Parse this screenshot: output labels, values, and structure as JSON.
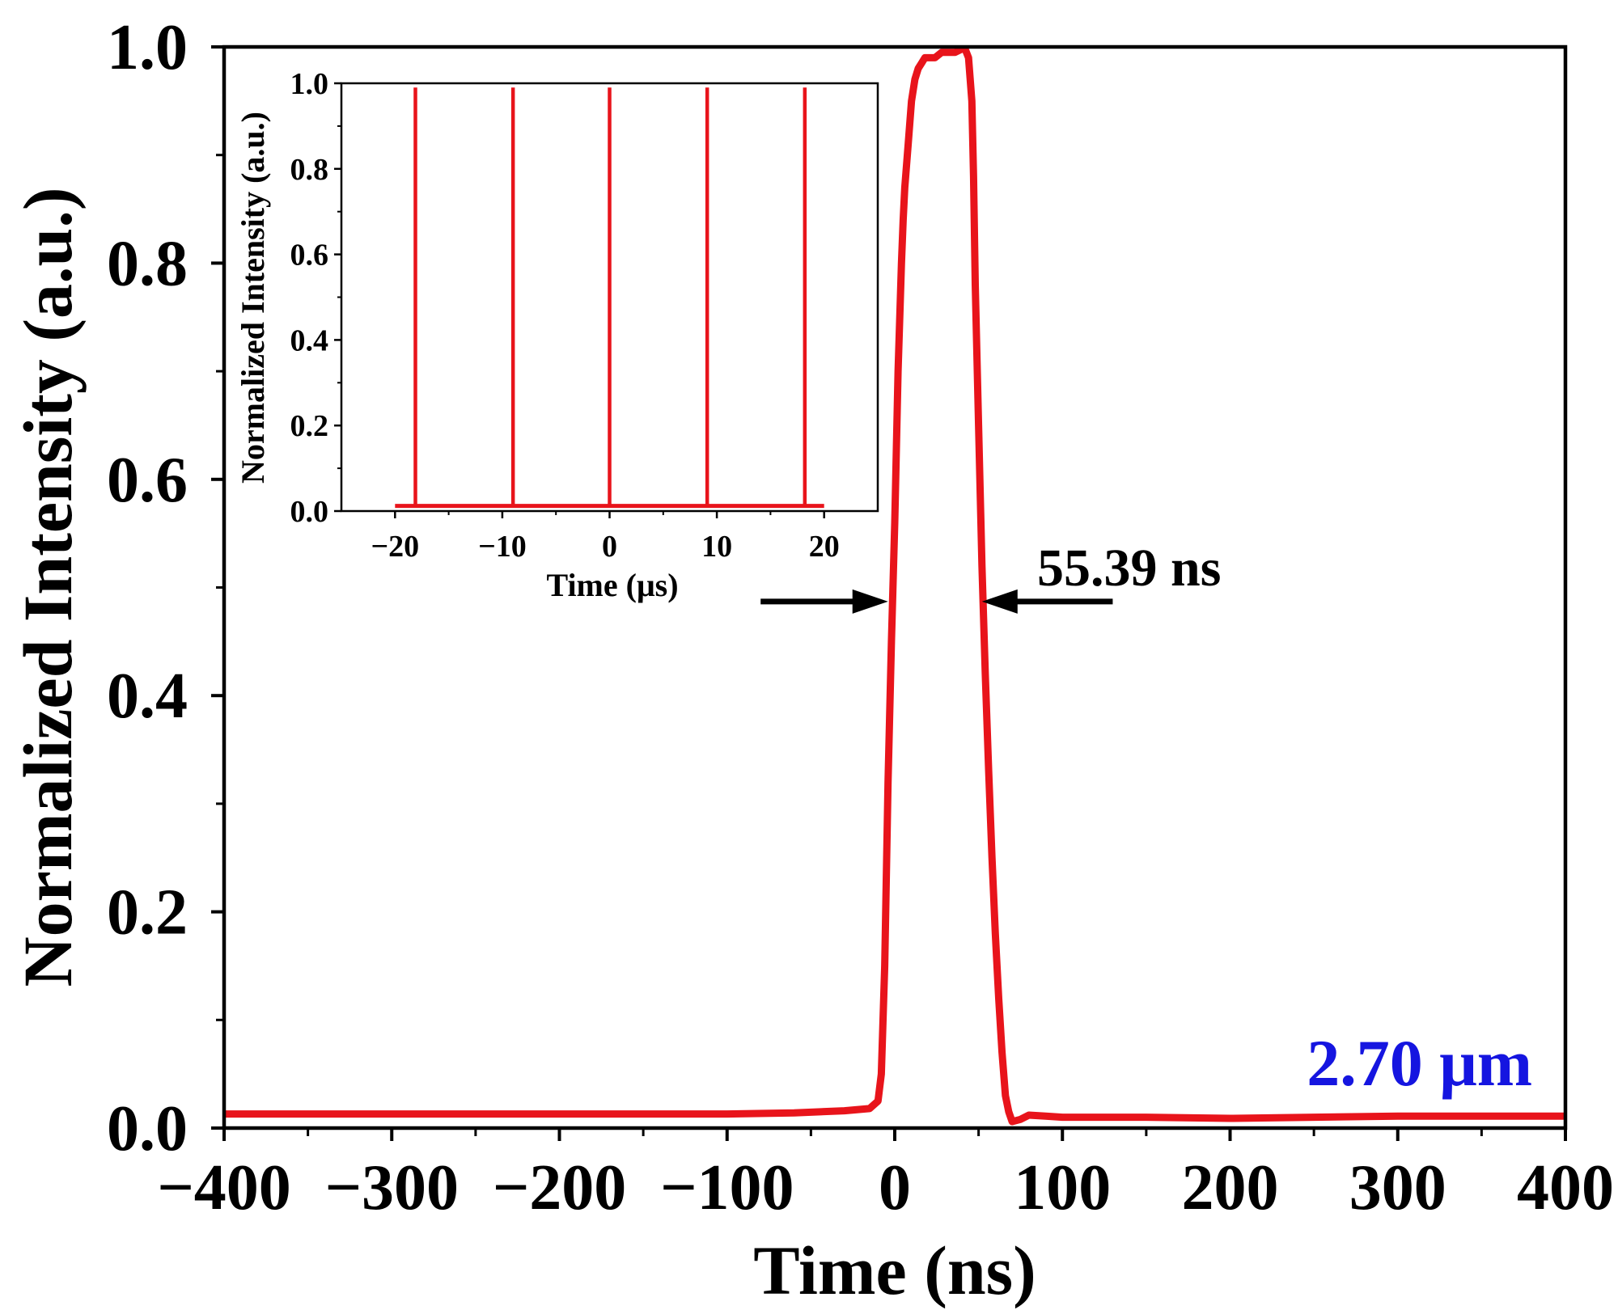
{
  "chart_data": [
    {
      "id": "main",
      "type": "line",
      "title": "",
      "xlabel": "Time (ns)",
      "ylabel": "Normalized Intensity (a.u.)",
      "xlim": [
        -400,
        400
      ],
      "ylim": [
        0,
        1.0
      ],
      "xticks": [
        -400,
        -300,
        -200,
        -100,
        0,
        100,
        200,
        300,
        400
      ],
      "xtick_labels": [
        "−400",
        "−300",
        "−200",
        "−100",
        "0",
        "100",
        "200",
        "300",
        "400"
      ],
      "yticks": [
        0.0,
        0.2,
        0.4,
        0.6,
        0.8,
        1.0
      ],
      "ytick_labels": [
        "0.0",
        "0.2",
        "0.4",
        "0.6",
        "0.8",
        "1.0"
      ],
      "grid": false,
      "series": [
        {
          "name": "pulse",
          "color": "#e8141b",
          "x": [
            -400,
            -350,
            -300,
            -250,
            -200,
            -150,
            -100,
            -60,
            -30,
            -15,
            -10,
            -8,
            -6,
            -4,
            -2,
            0,
            2,
            4,
            5,
            6,
            8,
            10,
            12,
            14,
            16,
            18,
            20,
            24,
            28,
            32,
            36,
            40,
            42,
            44,
            46,
            47,
            48,
            50,
            52,
            54,
            56,
            58,
            60,
            62,
            64,
            66,
            68,
            70,
            75,
            80,
            90,
            100,
            150,
            200,
            250,
            300,
            350,
            400
          ],
          "y": [
            0.013,
            0.013,
            0.013,
            0.013,
            0.013,
            0.013,
            0.013,
            0.014,
            0.016,
            0.018,
            0.025,
            0.05,
            0.15,
            0.32,
            0.45,
            0.56,
            0.7,
            0.8,
            0.84,
            0.87,
            0.91,
            0.95,
            0.97,
            0.98,
            0.985,
            0.99,
            0.99,
            0.99,
            0.995,
            0.995,
            0.995,
            0.998,
            0.998,
            0.99,
            0.95,
            0.88,
            0.78,
            0.65,
            0.52,
            0.42,
            0.33,
            0.25,
            0.18,
            0.12,
            0.07,
            0.03,
            0.015,
            0.006,
            0.008,
            0.012,
            0.011,
            0.01,
            0.01,
            0.009,
            0.01,
            0.011,
            0.011,
            0.011
          ]
        }
      ],
      "annotations": [
        {
          "text": "55.39 ns",
          "arrow_from_x": -80,
          "arrow_to_x": -4,
          "arrow_back_from_x": 130,
          "arrow_back_to_x": 52,
          "y": 0.487
        },
        {
          "text": "2.70 μm",
          "color": "#1515e0"
        }
      ]
    },
    {
      "id": "inset",
      "type": "line",
      "title": "",
      "xlabel": "Time (μs)",
      "ylabel": "Normalized Intensity (a.u.)",
      "xlim": [
        -25,
        25
      ],
      "ylim": [
        0,
        1.0
      ],
      "xticks": [
        -20,
        -10,
        0,
        10,
        20
      ],
      "xtick_labels": [
        "−20",
        "−10",
        "0",
        "10",
        "20"
      ],
      "yticks": [
        0.0,
        0.2,
        0.4,
        0.6,
        0.8,
        1.0
      ],
      "ytick_labels": [
        "0.0",
        "0.2",
        "0.4",
        "0.6",
        "0.8",
        "1.0"
      ],
      "grid": false,
      "series": [
        {
          "name": "pulse train",
          "color": "#e8141b",
          "baseline": [
            -20,
            20,
            0.012
          ],
          "pulse_x": [
            -18.1,
            -9.0,
            0.0,
            9.1,
            18.2
          ],
          "pulse_y": [
            0.99,
            0.99,
            0.99,
            0.99,
            0.99
          ]
        }
      ]
    }
  ]
}
